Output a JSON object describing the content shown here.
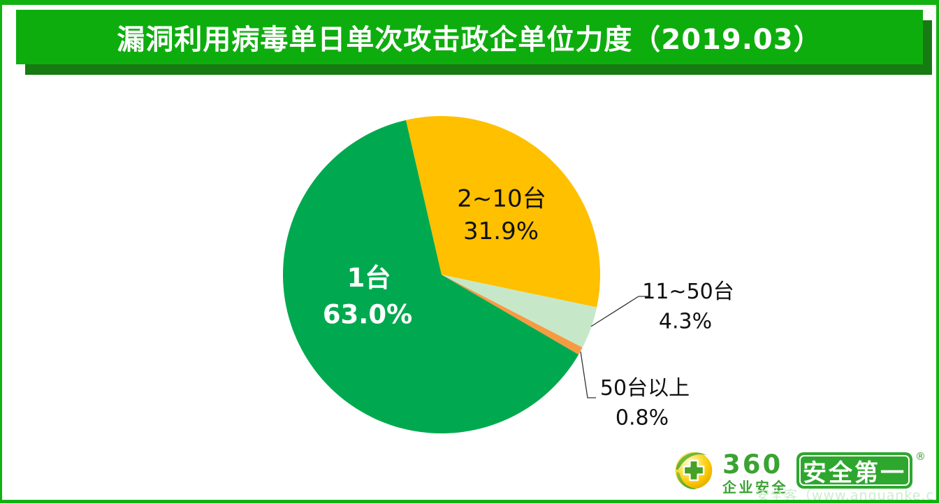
{
  "page": {
    "border_color": "#12b112",
    "background": "#ffffff"
  },
  "header": {
    "title": "漏洞利用病毒单日单次攻击政企单位力度（2019.03）",
    "bg_color": "#0ead0e",
    "shadow_color": "#177a12",
    "text_color": "#ffffff"
  },
  "chart_data": {
    "type": "pie",
    "title": "漏洞利用病毒单日单次攻击政企单位力度（2019.03）",
    "start_angle_deg": -13,
    "clockwise": true,
    "legend": "none",
    "slices": [
      {
        "label": "2~10台",
        "value": 31.9,
        "display": "31.9%",
        "color": "#FFC000",
        "label_position": "inside"
      },
      {
        "label": "11~50台",
        "value": 4.3,
        "display": "4.3%",
        "color": "#C7E8C8",
        "label_position": "outside"
      },
      {
        "label": "50台以上",
        "value": 0.8,
        "display": "0.8%",
        "color": "#F79B43",
        "label_position": "outside"
      },
      {
        "label": "1台",
        "value": 63.0,
        "display": "63.0%",
        "color": "#00A94F",
        "label_position": "inside"
      }
    ]
  },
  "logo": {
    "brand_number": "360",
    "brand_sub": "企业安全",
    "badge_text": "安全第一",
    "registered_mark": "®",
    "brand_color": "#3aa332",
    "badge_bg": "#2ea72e"
  },
  "watermark": {
    "text": "安全客（www.anquanke.c"
  }
}
